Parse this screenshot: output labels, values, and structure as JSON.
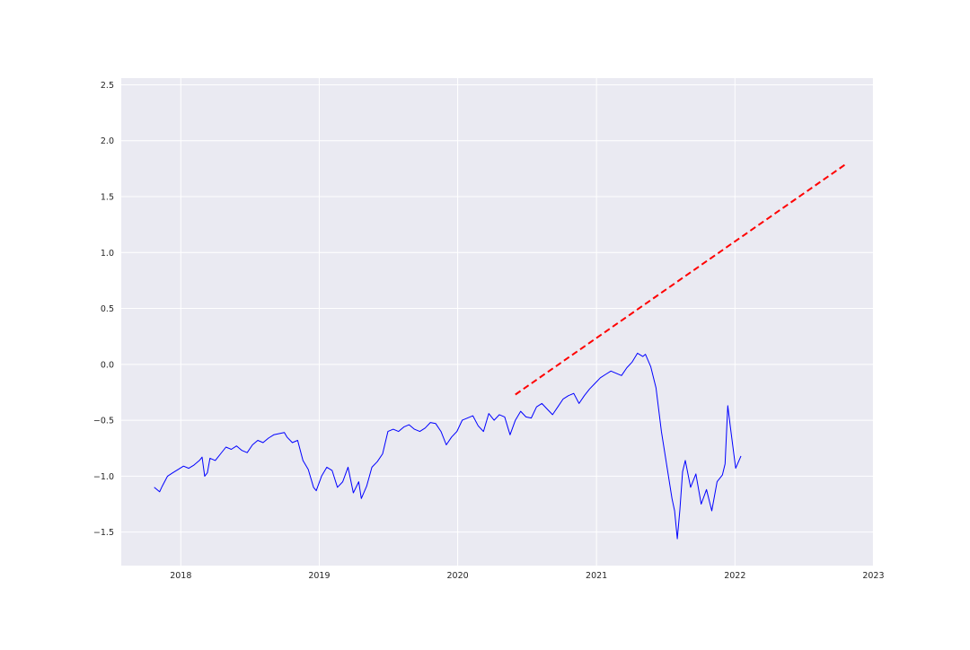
{
  "chart_data": {
    "type": "line",
    "title": "",
    "xlabel": "",
    "ylabel": "",
    "grid": true,
    "legend": "none",
    "xlim": [
      "2017-07-28",
      "2022-12-31"
    ],
    "ylim": [
      -1.8,
      2.56
    ],
    "x_ticks": [
      "2018-01-01",
      "2019-01-01",
      "2020-01-01",
      "2021-01-01",
      "2022-01-01",
      "2023-01-01"
    ],
    "x_tick_labels": [
      "2018",
      "2019",
      "2020",
      "2021",
      "2022",
      "2023"
    ],
    "y_ticks": [
      -1.5,
      -1.0,
      -0.5,
      0.0,
      0.5,
      1.0,
      1.5,
      2.0,
      2.5
    ],
    "y_tick_labels": [
      "−1.5",
      "−1.0",
      "−0.5",
      "0.0",
      "0.5",
      "1.0",
      "1.5",
      "2.0",
      "2.5"
    ],
    "colors": {
      "plot_bg": "#eaeaf2",
      "grid": "#ffffff",
      "series": "#0000ff",
      "trend": "#ff0000"
    },
    "series": [
      {
        "style": "solid",
        "points": [
          [
            "2017-10-23",
            -1.1
          ],
          [
            "2017-11-06",
            -1.14
          ],
          [
            "2017-11-13",
            -1.09
          ],
          [
            "2017-11-27",
            -1.0
          ],
          [
            "2017-12-11",
            -0.97
          ],
          [
            "2017-12-25",
            -0.94
          ],
          [
            "2018-01-08",
            -0.91
          ],
          [
            "2018-01-22",
            -0.93
          ],
          [
            "2018-02-05",
            -0.9
          ],
          [
            "2018-02-19",
            -0.86
          ],
          [
            "2018-02-26",
            -0.83
          ],
          [
            "2018-03-05",
            -1.0
          ],
          [
            "2018-03-12",
            -0.97
          ],
          [
            "2018-03-19",
            -0.84
          ],
          [
            "2018-04-02",
            -0.86
          ],
          [
            "2018-04-16",
            -0.8
          ],
          [
            "2018-04-30",
            -0.74
          ],
          [
            "2018-05-14",
            -0.76
          ],
          [
            "2018-05-28",
            -0.73
          ],
          [
            "2018-06-11",
            -0.77
          ],
          [
            "2018-06-25",
            -0.79
          ],
          [
            "2018-07-09",
            -0.72
          ],
          [
            "2018-07-23",
            -0.68
          ],
          [
            "2018-08-06",
            -0.7
          ],
          [
            "2018-08-20",
            -0.66
          ],
          [
            "2018-09-03",
            -0.63
          ],
          [
            "2018-09-17",
            -0.62
          ],
          [
            "2018-10-01",
            -0.61
          ],
          [
            "2018-10-08",
            -0.65
          ],
          [
            "2018-10-22",
            -0.7
          ],
          [
            "2018-11-05",
            -0.68
          ],
          [
            "2018-11-19",
            -0.86
          ],
          [
            "2018-12-03",
            -0.94
          ],
          [
            "2018-12-17",
            -1.1
          ],
          [
            "2018-12-24",
            -1.13
          ],
          [
            "2019-01-07",
            -1.0
          ],
          [
            "2019-01-21",
            -0.92
          ],
          [
            "2019-02-04",
            -0.95
          ],
          [
            "2019-02-18",
            -1.1
          ],
          [
            "2019-03-04",
            -1.05
          ],
          [
            "2019-03-18",
            -0.92
          ],
          [
            "2019-04-01",
            -1.15
          ],
          [
            "2019-04-15",
            -1.05
          ],
          [
            "2019-04-22",
            -1.2
          ],
          [
            "2019-05-06",
            -1.09
          ],
          [
            "2019-05-20",
            -0.92
          ],
          [
            "2019-06-03",
            -0.87
          ],
          [
            "2019-06-17",
            -0.8
          ],
          [
            "2019-07-01",
            -0.6
          ],
          [
            "2019-07-15",
            -0.58
          ],
          [
            "2019-07-29",
            -0.6
          ],
          [
            "2019-08-12",
            -0.56
          ],
          [
            "2019-08-26",
            -0.54
          ],
          [
            "2019-09-09",
            -0.58
          ],
          [
            "2019-09-23",
            -0.6
          ],
          [
            "2019-10-07",
            -0.57
          ],
          [
            "2019-10-21",
            -0.52
          ],
          [
            "2019-11-04",
            -0.53
          ],
          [
            "2019-11-18",
            -0.6
          ],
          [
            "2019-12-02",
            -0.72
          ],
          [
            "2019-12-16",
            -0.65
          ],
          [
            "2019-12-30",
            -0.6
          ],
          [
            "2020-01-13",
            -0.5
          ],
          [
            "2020-01-27",
            -0.48
          ],
          [
            "2020-02-10",
            -0.46
          ],
          [
            "2020-02-24",
            -0.55
          ],
          [
            "2020-03-09",
            -0.6
          ],
          [
            "2020-03-23",
            -0.44
          ],
          [
            "2020-04-06",
            -0.5
          ],
          [
            "2020-04-20",
            -0.45
          ],
          [
            "2020-05-04",
            -0.47
          ],
          [
            "2020-05-18",
            -0.63
          ],
          [
            "2020-06-01",
            -0.5
          ],
          [
            "2020-06-15",
            -0.42
          ],
          [
            "2020-06-29",
            -0.47
          ],
          [
            "2020-07-13",
            -0.48
          ],
          [
            "2020-07-27",
            -0.38
          ],
          [
            "2020-08-10",
            -0.35
          ],
          [
            "2020-08-24",
            -0.4
          ],
          [
            "2020-09-07",
            -0.45
          ],
          [
            "2020-09-21",
            -0.38
          ],
          [
            "2020-10-05",
            -0.31
          ],
          [
            "2020-10-19",
            -0.28
          ],
          [
            "2020-11-02",
            -0.26
          ],
          [
            "2020-11-16",
            -0.35
          ],
          [
            "2020-11-30",
            -0.28
          ],
          [
            "2020-12-14",
            -0.22
          ],
          [
            "2020-12-28",
            -0.17
          ],
          [
            "2021-01-11",
            -0.12
          ],
          [
            "2021-01-25",
            -0.09
          ],
          [
            "2021-02-08",
            -0.06
          ],
          [
            "2021-02-22",
            -0.08
          ],
          [
            "2021-03-08",
            -0.1
          ],
          [
            "2021-03-22",
            -0.03
          ],
          [
            "2021-04-05",
            0.02
          ],
          [
            "2021-04-19",
            0.1
          ],
          [
            "2021-05-03",
            0.07
          ],
          [
            "2021-05-10",
            0.09
          ],
          [
            "2021-05-24",
            -0.02
          ],
          [
            "2021-06-07",
            -0.21
          ],
          [
            "2021-06-21",
            -0.6
          ],
          [
            "2021-07-05",
            -0.9
          ],
          [
            "2021-07-19",
            -1.2
          ],
          [
            "2021-07-26",
            -1.31
          ],
          [
            "2021-08-02",
            -1.56
          ],
          [
            "2021-08-09",
            -1.3
          ],
          [
            "2021-08-16",
            -0.96
          ],
          [
            "2021-08-23",
            -0.86
          ],
          [
            "2021-09-06",
            -1.1
          ],
          [
            "2021-09-20",
            -0.98
          ],
          [
            "2021-10-04",
            -1.25
          ],
          [
            "2021-10-18",
            -1.12
          ],
          [
            "2021-11-01",
            -1.31
          ],
          [
            "2021-11-15",
            -1.05
          ],
          [
            "2021-11-29",
            -0.99
          ],
          [
            "2021-12-06",
            -0.89
          ],
          [
            "2021-12-13",
            -0.37
          ],
          [
            "2021-12-20",
            -0.56
          ],
          [
            "2022-01-03",
            -0.93
          ],
          [
            "2022-01-17",
            -0.82
          ]
        ]
      },
      {
        "style": "dashed",
        "points": [
          [
            "2020-06-01",
            -0.27
          ],
          [
            "2022-10-20",
            1.79
          ]
        ]
      }
    ]
  }
}
